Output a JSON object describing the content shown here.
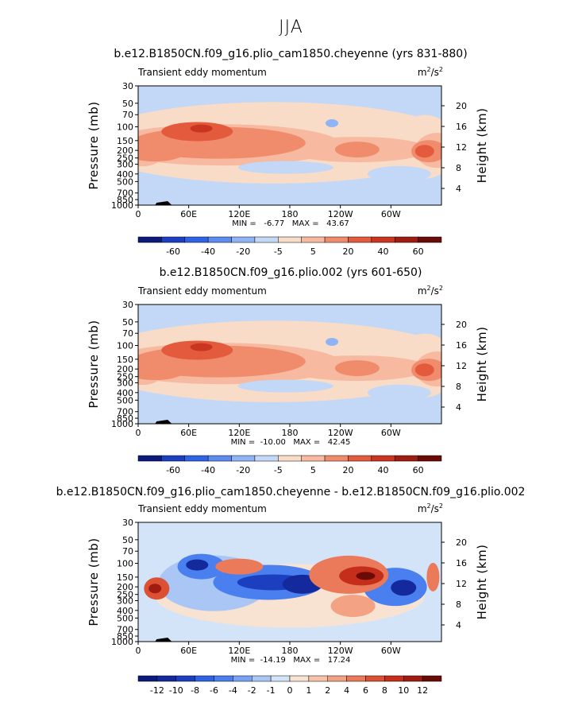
{
  "super_title": "JJA",
  "chart_data": [
    {
      "type": "heatmap",
      "title": "b.e12.B1850CN.f09_g16.plio_cam1850.cheyenne (yrs 831-880)",
      "left_string": "Transient eddy momentum",
      "units": "m²/s²",
      "units_base": "m",
      "units_sup1": "2",
      "units_mid": "/s",
      "units_sup2": "2",
      "ylabel": "Pressure (mb)",
      "ylabel_right": "Height (km)",
      "x_ticks": [
        "0",
        "60E",
        "120E",
        "180",
        "120W",
        "60W"
      ],
      "x_range": [
        0,
        360
      ],
      "y_ticks": [
        "30",
        "50",
        "70",
        "100",
        "150",
        "200",
        "250",
        "300",
        "400",
        "500",
        "700",
        "850",
        "1000"
      ],
      "y_range_mb": [
        1000,
        30
      ],
      "height_ticks_km": [
        "20",
        "16",
        "12",
        "8",
        "4"
      ],
      "min_max_text": "MIN =   -6.77   MAX =   43.67",
      "min": -6.77,
      "max": 43.67,
      "colorbar_levels": [
        "-60",
        "-40",
        "-20",
        "-5",
        "5",
        "20",
        "40",
        "60"
      ],
      "colorbar_colors": [
        "#0c1a7c",
        "#1b3fbf",
        "#2f63e6",
        "#5c8cf0",
        "#8fb3f4",
        "#c2d8f6",
        "#f8dcc7",
        "#f7b9a0",
        "#f08c6c",
        "#e35a3c",
        "#c93520",
        "#9e1c10",
        "#6b0b07"
      ]
    },
    {
      "type": "heatmap",
      "title": "b.e12.B1850CN.f09_g16.plio.002 (yrs 601-650)",
      "left_string": "Transient eddy momentum",
      "units": "m²/s²",
      "units_base": "m",
      "units_sup1": "2",
      "units_mid": "/s",
      "units_sup2": "2",
      "ylabel": "Pressure (mb)",
      "ylabel_right": "Height (km)",
      "x_ticks": [
        "0",
        "60E",
        "120E",
        "180",
        "120W",
        "60W"
      ],
      "x_range": [
        0,
        360
      ],
      "y_ticks": [
        "30",
        "50",
        "70",
        "100",
        "150",
        "200",
        "250",
        "300",
        "400",
        "500",
        "700",
        "850",
        "1000"
      ],
      "y_range_mb": [
        1000,
        30
      ],
      "height_ticks_km": [
        "20",
        "16",
        "12",
        "8",
        "4"
      ],
      "min_max_text": "MIN =  -10.00   MAX =   42.45",
      "min": -10.0,
      "max": 42.45,
      "colorbar_levels": [
        "-60",
        "-40",
        "-20",
        "-5",
        "5",
        "20",
        "40",
        "60"
      ],
      "colorbar_colors": [
        "#0c1a7c",
        "#1b3fbf",
        "#2f63e6",
        "#5c8cf0",
        "#8fb3f4",
        "#c2d8f6",
        "#f8dcc7",
        "#f7b9a0",
        "#f08c6c",
        "#e35a3c",
        "#c93520",
        "#9e1c10",
        "#6b0b07"
      ]
    },
    {
      "type": "heatmap",
      "title": "b.e12.B1850CN.f09_g16.plio_cam1850.cheyenne - b.e12.B1850CN.f09_g16.plio.002",
      "left_string": "Transient eddy momentum",
      "units": "m²/s²",
      "units_base": "m",
      "units_sup1": "2",
      "units_mid": "/s",
      "units_sup2": "2",
      "ylabel": "Pressure (mb)",
      "ylabel_right": "Height (km)",
      "x_ticks": [
        "0",
        "60E",
        "120E",
        "180",
        "120W",
        "60W"
      ],
      "x_range": [
        0,
        360
      ],
      "y_ticks": [
        "30",
        "50",
        "70",
        "100",
        "150",
        "200",
        "250",
        "300",
        "400",
        "500",
        "700",
        "850",
        "1000"
      ],
      "y_range_mb": [
        1000,
        30
      ],
      "height_ticks_km": [
        "20",
        "16",
        "12",
        "8",
        "4"
      ],
      "min_max_text": "MIN =  -14.19   MAX =   17.24",
      "min": -14.19,
      "max": 17.24,
      "colorbar_levels": [
        "-12",
        "-10",
        "-8",
        "-6",
        "-4",
        "-2",
        "-1",
        "0",
        "1",
        "2",
        "4",
        "6",
        "8",
        "10",
        "12"
      ],
      "colorbar_colors": [
        "#0c1a7c",
        "#13299c",
        "#1b3fbf",
        "#2f63e6",
        "#4a7ff0",
        "#78a2f2",
        "#a9c6f5",
        "#d3e4f8",
        "#f8e2d2",
        "#f7c3aa",
        "#f3a283",
        "#ea7a5a",
        "#dc5034",
        "#c42e1a",
        "#9e1c10",
        "#6b0b07"
      ]
    }
  ]
}
